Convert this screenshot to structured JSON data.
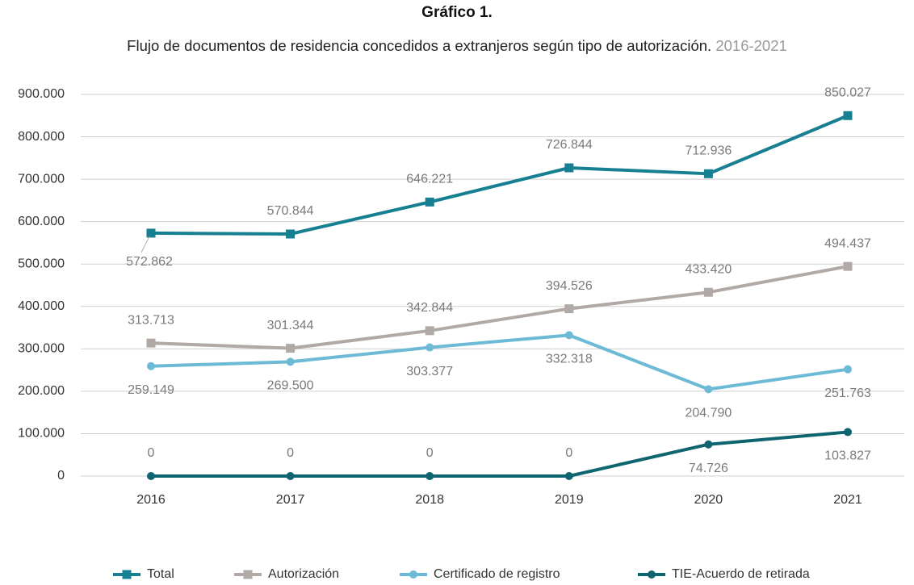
{
  "chart_data": {
    "type": "line",
    "title": "Gráfico 1.",
    "subtitle": "Flujo de documentos de residencia concedidos a extranjeros según tipo de autorización.",
    "period": "2016-2021",
    "categories": [
      "2016",
      "2017",
      "2018",
      "2019",
      "2020",
      "2021"
    ],
    "ylim": [
      0,
      900000
    ],
    "yticks": [
      0,
      {
        "value": 100000,
        "label": "100.000"
      },
      {
        "value": 200000,
        "label": "200.000"
      },
      {
        "value": 300000,
        "label": "300.000"
      },
      {
        "value": 400000,
        "label": "400.000"
      },
      {
        "value": 500000,
        "label": "500.000"
      },
      {
        "value": 600000,
        "label": "600.000"
      },
      {
        "value": 700000,
        "label": "700.000"
      },
      {
        "value": 800000,
        "label": "800.000"
      },
      {
        "value": 900000,
        "label": "900.000"
      }
    ],
    "grid": true,
    "legend": "bottom",
    "series": [
      {
        "name": "Total",
        "color": "#167f91",
        "marker": "square",
        "values": [
          572862,
          570844,
          646221,
          726844,
          712936,
          850027
        ],
        "value_labels": [
          "572.862",
          "570.844",
          "646.221",
          "726.844",
          "712.936",
          "850.027"
        ]
      },
      {
        "name": "Autorización",
        "color": "#b1a9a6",
        "marker": "square",
        "values": [
          313713,
          301344,
          342844,
          394526,
          433420,
          494437
        ],
        "value_labels": [
          "313.713",
          "301.344",
          "342.844",
          "394.526",
          "433.420",
          "494.437"
        ]
      },
      {
        "name": "Certificado de registro",
        "color": "#6cbad6",
        "marker": "circle",
        "values": [
          259149,
          269500,
          303377,
          332318,
          204790,
          251763
        ],
        "value_labels": [
          "259.149",
          "269.500",
          "303.377",
          "332.318",
          "204.790",
          "251.763"
        ]
      },
      {
        "name": "TIE-Acuerdo de retirada",
        "color": "#0e6570",
        "marker": "circle",
        "values": [
          0,
          0,
          0,
          0,
          74726,
          103827
        ],
        "value_labels": [
          "0",
          "0",
          "0",
          "0",
          "74.726",
          "103.827"
        ]
      }
    ]
  }
}
